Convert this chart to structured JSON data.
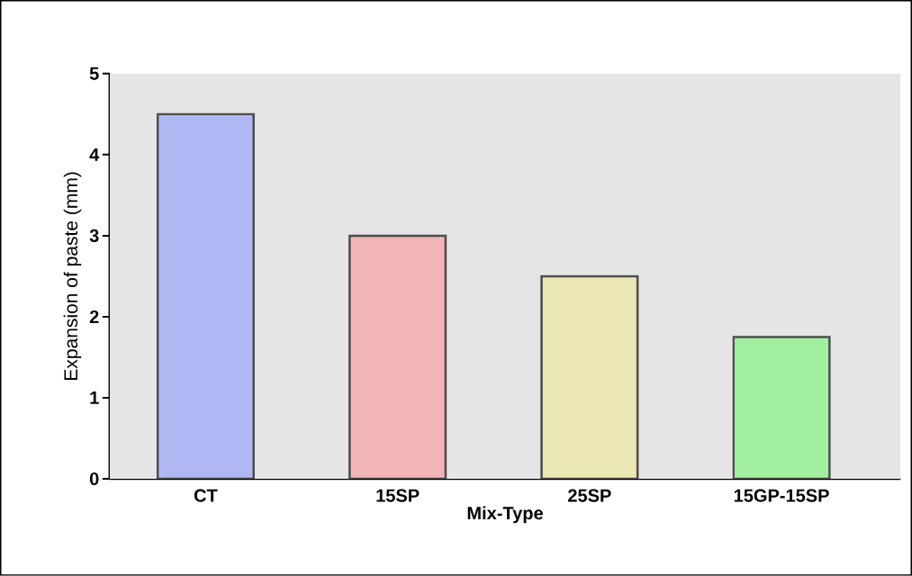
{
  "chart_data": {
    "type": "bar",
    "categories": [
      "CT",
      "15SP",
      "25SP",
      "15GP-15SP"
    ],
    "values": [
      4.5,
      3,
      2.5,
      1.75
    ],
    "colors": [
      "#b0b8f4",
      "#f2b5b5",
      "#ece8b4",
      "#a0f0a0"
    ],
    "xlabel": "Mix-Type",
    "ylabel": "Expansion of paste (mm)",
    "ylim": [
      0,
      5
    ],
    "yticks": [
      0,
      1,
      2,
      3,
      4,
      5
    ],
    "grid": false
  }
}
